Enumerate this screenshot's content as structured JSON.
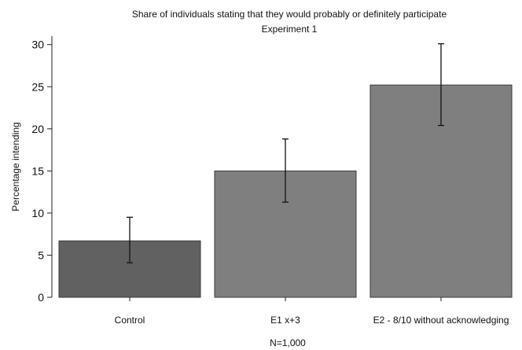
{
  "chart_data": {
    "type": "bar",
    "title": "Share of individuals stating that they would probably or definitely participate",
    "subtitle": "Experiment 1",
    "xlabel": "N=1,000",
    "ylabel": "Percentage intending",
    "categories": [
      "Control",
      "E1 x+3",
      "E2 - 8/10 without acknowledging"
    ],
    "values": [
      6.7,
      15.0,
      25.2
    ],
    "error_low": [
      4.1,
      11.3,
      20.4
    ],
    "error_high": [
      9.5,
      18.8,
      30.1
    ],
    "bar_colors": [
      "#616161",
      "#7f7f7f",
      "#7f7f7f"
    ],
    "ylim": [
      0,
      31
    ],
    "yticks": [
      0,
      5,
      10,
      15,
      20,
      25,
      30
    ],
    "yticks_labels": [
      "0",
      "5",
      "10",
      "15",
      "20",
      "25",
      "30"
    ],
    "grid": false,
    "legend": "none"
  }
}
